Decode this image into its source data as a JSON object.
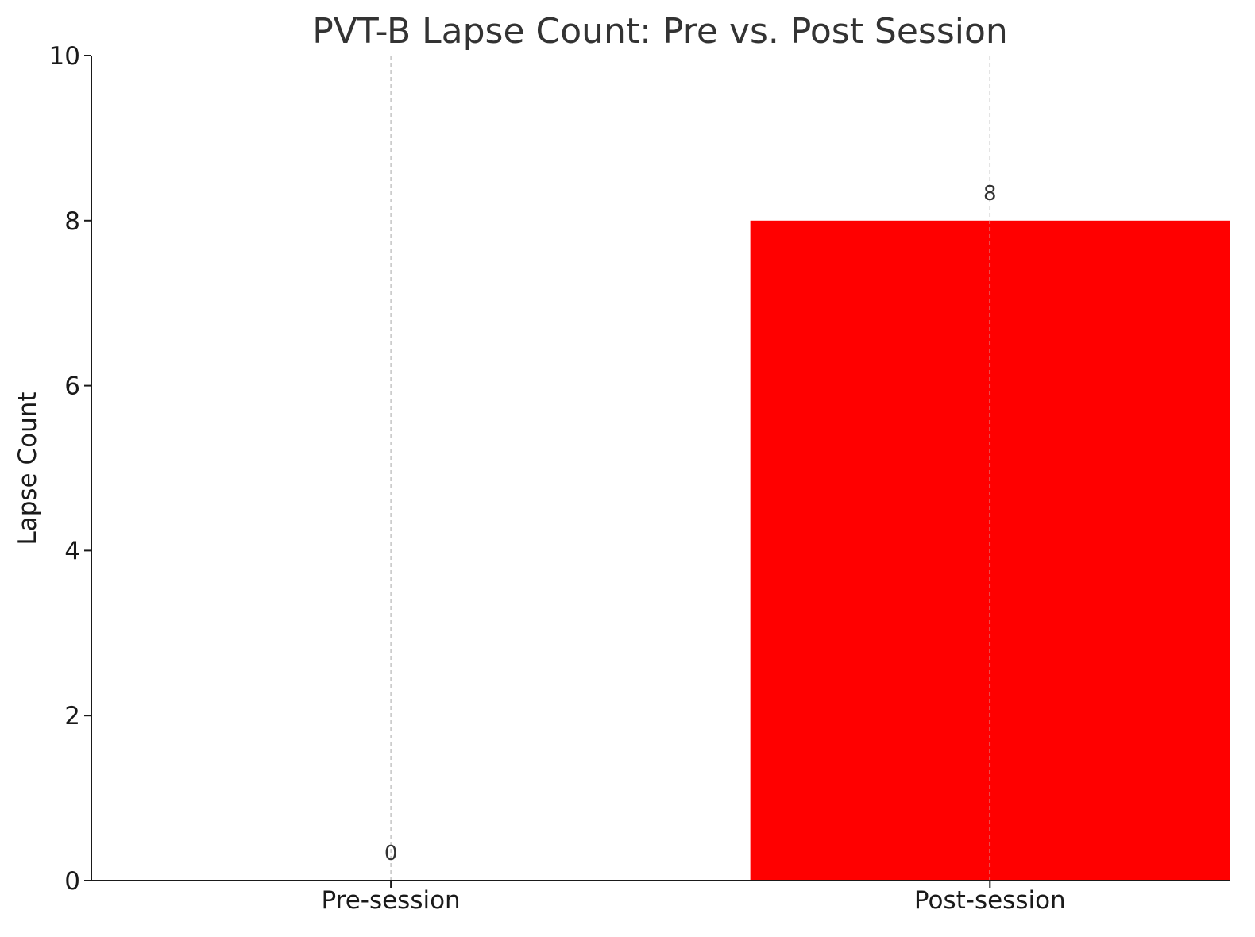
{
  "chart_data": {
    "type": "bar",
    "title": "PVT-B Lapse Count: Pre vs. Post Session",
    "xlabel": "",
    "ylabel": "Lapse Count",
    "categories": [
      "Pre-session",
      "Post-session"
    ],
    "values": [
      0,
      8
    ],
    "data_labels": [
      "0",
      "8"
    ],
    "ylim": [
      0,
      10
    ],
    "yticks": [
      0,
      2,
      4,
      6,
      8,
      10
    ],
    "ytick_labels": [
      "0",
      "2",
      "4",
      "6",
      "8",
      "10"
    ],
    "bar_color": "#ff0000",
    "grid": "x-axis dashed",
    "legend": "none"
  }
}
